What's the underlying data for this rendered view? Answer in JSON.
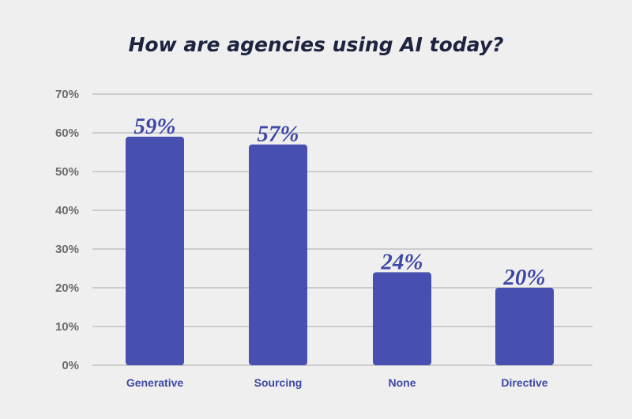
{
  "chart_data": {
    "type": "bar",
    "title": "How are agencies using AI today?",
    "categories": [
      "Generative",
      "Sourcing",
      "None",
      "Directive"
    ],
    "values": [
      59,
      57,
      24,
      20
    ],
    "data_labels": [
      "59%",
      "57%",
      "24%",
      "20%"
    ],
    "ylim": [
      0,
      70
    ],
    "yticks": [
      0,
      10,
      20,
      30,
      40,
      50,
      60,
      70
    ],
    "ytick_labels": [
      "0%",
      "10%",
      "20%",
      "30%",
      "40%",
      "50%",
      "60%",
      "70%"
    ],
    "xlabel": "",
    "ylabel": "",
    "grid": true,
    "legend": "none",
    "colors": {
      "bar": "#4750b0",
      "category_label": "#3f47a6",
      "data_label": "#3f47a6",
      "tick_label": "#6b6b6b",
      "gridline": "#a8a8a8",
      "title": "#1e2340",
      "background": "#efefef"
    }
  }
}
